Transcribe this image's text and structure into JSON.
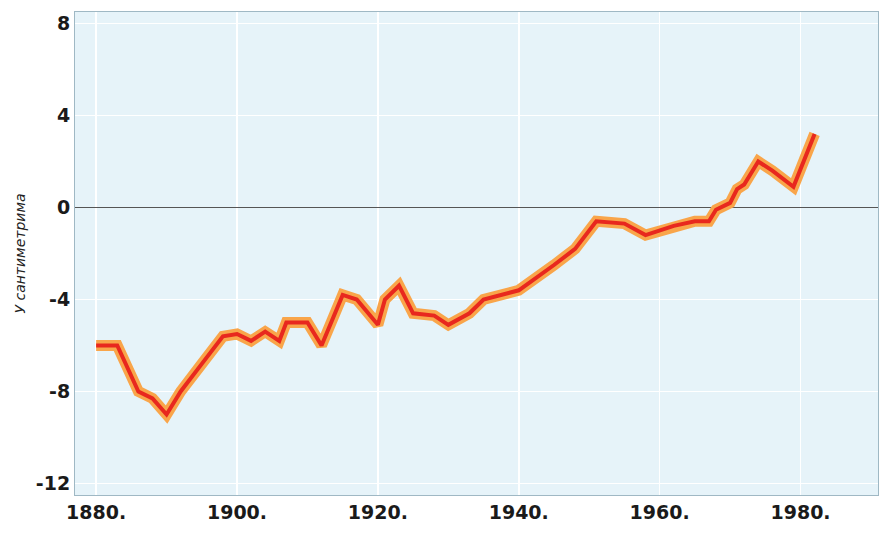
{
  "chart_data": {
    "type": "line",
    "y_label": "У сантиметрима",
    "x": [
      1880,
      1883,
      1886,
      1888,
      1890,
      1892,
      1895,
      1898,
      1900,
      1902,
      1904,
      1906,
      1907,
      1910,
      1912,
      1915,
      1917,
      1920,
      1921,
      1923,
      1925,
      1928,
      1930,
      1933,
      1935,
      1940,
      1945,
      1948,
      1951,
      1955,
      1958,
      1962,
      1965,
      1967,
      1968,
      1970,
      1971,
      1972,
      1974,
      1976,
      1979,
      1982
    ],
    "values": [
      -6.0,
      -6.0,
      -8.0,
      -8.3,
      -9.0,
      -8.0,
      -6.8,
      -5.6,
      -5.5,
      -5.8,
      -5.4,
      -5.8,
      -5.0,
      -5.0,
      -6.0,
      -3.8,
      -4.0,
      -5.1,
      -4.0,
      -3.4,
      -4.6,
      -4.7,
      -5.1,
      -4.6,
      -4.0,
      -3.6,
      -2.5,
      -1.8,
      -0.6,
      -0.7,
      -1.2,
      -0.8,
      -0.6,
      -0.6,
      -0.1,
      0.2,
      0.8,
      1.0,
      2.0,
      1.6,
      0.9,
      3.2
    ],
    "color": "#e8281e",
    "xlim": [
      1877,
      1991
    ],
    "xticks": [
      {
        "value": 1880,
        "label": "1880."
      },
      {
        "value": 1900,
        "label": "1900."
      },
      {
        "value": 1920,
        "label": "1920."
      },
      {
        "value": 1940,
        "label": "1940."
      },
      {
        "value": 1960,
        "label": "1960."
      },
      {
        "value": 1980,
        "label": "1980."
      }
    ],
    "ylim": [
      -12.5,
      8.5
    ],
    "yticks": [
      -12,
      -8,
      -4,
      0,
      4,
      8
    ],
    "grid": true
  }
}
